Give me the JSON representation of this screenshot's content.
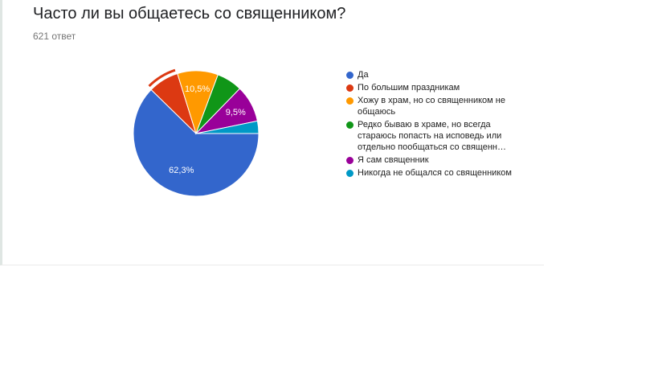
{
  "title": "Часто ли вы общаетесь со священником?",
  "response_count": "621 ответ",
  "chart_data": {
    "type": "pie",
    "title": "Часто ли вы общаетесь со священником?",
    "series": [
      {
        "label": "Да",
        "value": 62.3,
        "color": "#3366cc",
        "data_label": "62,3%"
      },
      {
        "label": "По большим праздникам",
        "value": 7.9,
        "color": "#dc3912",
        "data_label": ""
      },
      {
        "label": "Хожу в храм, но со священником не общаюсь",
        "value": 10.5,
        "color": "#ff9900",
        "data_label": "10,5%"
      },
      {
        "label": "Редко бываю в храме, но всегда стараюсь попасть на исповедь или отдельно пообщаться со священн…",
        "value": 6.6,
        "color": "#109618",
        "data_label": ""
      },
      {
        "label": "Я сам священник",
        "value": 9.5,
        "color": "#990099",
        "data_label": "9,5%"
      },
      {
        "label": "Никогда не общался со священником",
        "value": 3.2,
        "color": "#0099c6",
        "data_label": ""
      }
    ],
    "legend_position": "right",
    "highlighted_slice": "По большим праздникам"
  }
}
